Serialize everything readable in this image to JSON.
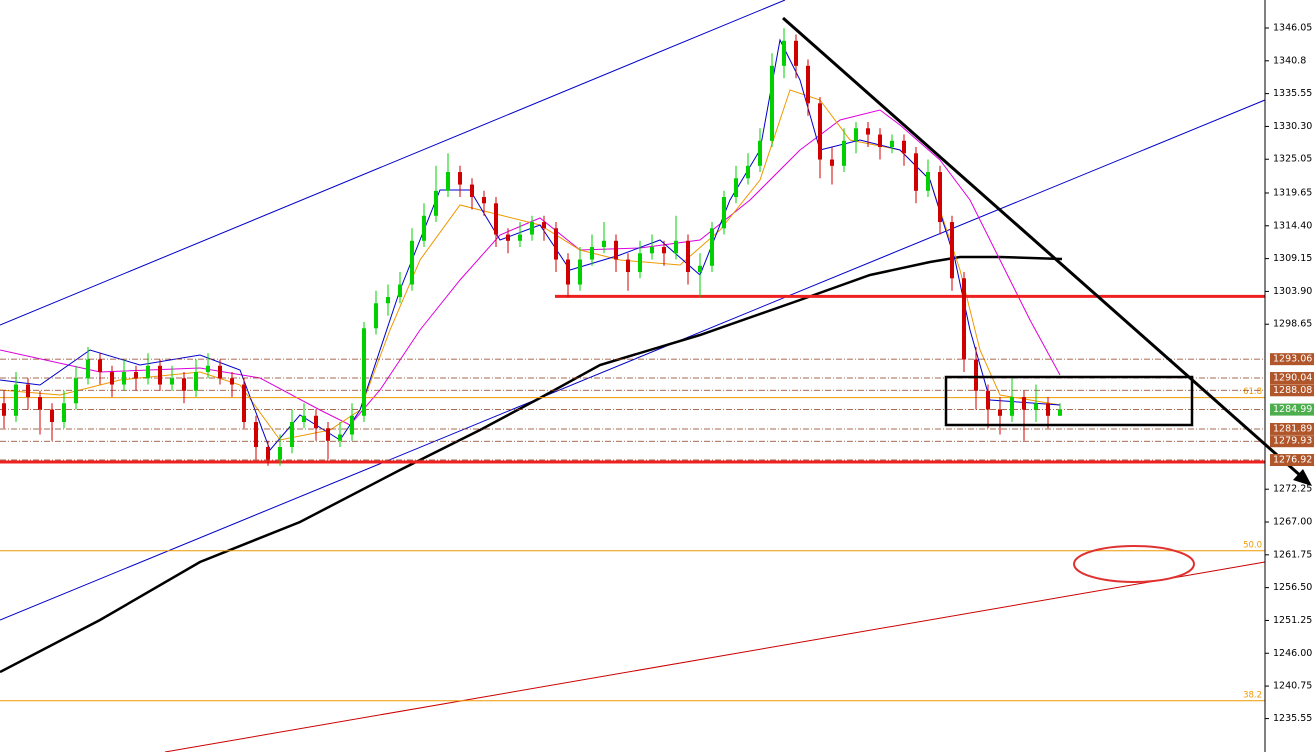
{
  "chart_data": {
    "type": "candlestick",
    "ylim": [
      1230.2,
      1350.53
    ],
    "yticks": [
      1346.05,
      1340.8,
      1335.55,
      {
        "value": 1330.3,
        "label": "1330.30"
      },
      1325.05,
      1319.65,
      {
        "value": 1314.4,
        "label": "1314.40"
      },
      1309.15,
      {
        "value": 1303.9,
        "label": "1303.90"
      },
      1298.65,
      1272.25,
      {
        "value": 1267,
        "label": "1267.00"
      },
      1261.75,
      {
        "value": 1256.5,
        "label": "1256.50"
      },
      1251.25,
      {
        "value": 1246,
        "label": "1246.00"
      },
      1240.75,
      1235.55
    ],
    "up_color": "#00d000",
    "down_color": "#d00000",
    "open": [
      1286,
      1284,
      1289,
      1287,
      1285,
      1283,
      1286,
      1290,
      1293,
      1291,
      1289,
      1291,
      1290,
      1292,
      1289,
      1290,
      1288,
      1291,
      1292,
      1290,
      1289,
      1283,
      1279,
      1277,
      1279,
      1283,
      1284,
      1282,
      1280,
      1281,
      1284,
      1298,
      1302,
      1303,
      1305,
      1312,
      1316,
      1320,
      1323,
      1321,
      1319,
      1318,
      1313,
      1312,
      1313,
      1315,
      1314,
      1309,
      1305,
      1309,
      1311,
      1312,
      1309,
      1307,
      1310,
      1311,
      1310,
      1312,
      1307,
      1308,
      1314,
      1319,
      1322,
      1324,
      1328,
      1340,
      1344,
      1340,
      1334,
      1325,
      1324,
      1328,
      1330,
      1329,
      1327,
      1328,
      1326,
      1320,
      1323,
      1315,
      1306,
      1293,
      1288,
      1285,
      1284,
      1287,
      1285,
      1286,
      1284
    ],
    "high": [
      1288,
      1291,
      1290,
      1288,
      1286,
      1288,
      1292,
      1295,
      1294,
      1292,
      1293,
      1292,
      1294,
      1293,
      1292,
      1291,
      1293,
      1294,
      1293,
      1291,
      1290,
      1284,
      1280,
      1281,
      1285,
      1286,
      1285,
      1283,
      1283,
      1286,
      1299,
      1304,
      1305,
      1307,
      1314,
      1318,
      1324,
      1326,
      1324,
      1322,
      1320,
      1319,
      1314,
      1315,
      1316,
      1316,
      1315,
      1310,
      1311,
      1313,
      1315,
      1313,
      1310,
      1312,
      1313,
      1312,
      1316,
      1313,
      1310,
      1315,
      1320,
      1324,
      1326,
      1330,
      1342,
      1346,
      1345,
      1341,
      1335,
      1327,
      1330,
      1331,
      1331,
      1330,
      1329,
      1329,
      1327,
      1325,
      1324,
      1316,
      1307,
      1295,
      1289,
      1287,
      1290,
      1288,
      1289,
      1287,
      1286
    ],
    "low": [
      1282,
      1283,
      1285,
      1281,
      1280,
      1282,
      1285,
      1289,
      1289,
      1287,
      1288,
      1288,
      1289,
      1288,
      1288,
      1286,
      1287,
      1290,
      1289,
      1287,
      1282,
      1277,
      1276,
      1276,
      1278,
      1282,
      1280,
      1277,
      1279,
      1280,
      1283,
      1297,
      1300,
      1302,
      1304,
      1311,
      1315,
      1319,
      1319,
      1317,
      1316,
      1311,
      1310,
      1311,
      1312,
      1312,
      1307,
      1303,
      1304,
      1308,
      1310,
      1307,
      1304,
      1306,
      1309,
      1308,
      1309,
      1305,
      1303,
      1307,
      1313,
      1318,
      1321,
      1323,
      1327,
      1338,
      1338,
      1332,
      1322,
      1321,
      1323,
      1326,
      1327,
      1325,
      1326,
      1324,
      1318,
      1319,
      1313,
      1304,
      1291,
      1285,
      1282,
      1281,
      1283,
      1280,
      1283,
      1282,
      1284
    ],
    "close": [
      1284,
      1289,
      1287,
      1285,
      1283,
      1286,
      1290,
      1293,
      1291,
      1289,
      1291,
      1290,
      1292,
      1289,
      1290,
      1288,
      1291,
      1292,
      1290,
      1289,
      1283,
      1279,
      1277,
      1279,
      1283,
      1284,
      1282,
      1280,
      1281,
      1284,
      1298,
      1302,
      1303,
      1305,
      1312,
      1316,
      1320,
      1323,
      1321,
      1319,
      1318,
      1313,
      1312,
      1313,
      1315,
      1314,
      1309,
      1305,
      1309,
      1311,
      1312,
      1309,
      1307,
      1310,
      1311,
      1310,
      1312,
      1307,
      1308,
      1314,
      1319,
      1322,
      1324,
      1328,
      1340,
      1344,
      1340,
      1334,
      1325,
      1324,
      1328,
      1330,
      1329,
      1327,
      1328,
      1326,
      1320,
      1323,
      1315,
      1306,
      1293,
      1288,
      1285,
      1284,
      1287,
      1285,
      1286,
      1284,
      1285
    ],
    "levels": [
      1293.06,
      1290.04,
      1288.08,
      1284.99,
      1281.89,
      1279.93,
      1276.92
    ],
    "level_colors": [
      "#b0562a",
      "#b0562a",
      "#b0562a",
      "#4cae4c",
      "#b0562a",
      "#b0562a",
      "#b0562a"
    ],
    "fib_levels": [
      {
        "value": 1286.9,
        "label": "61.8"
      },
      {
        "value": 1262.4,
        "label": "50.0"
      },
      {
        "value": 1238.4,
        "label": "38.2"
      }
    ],
    "support_levels": [
      1303.1,
      1276.6
    ]
  }
}
